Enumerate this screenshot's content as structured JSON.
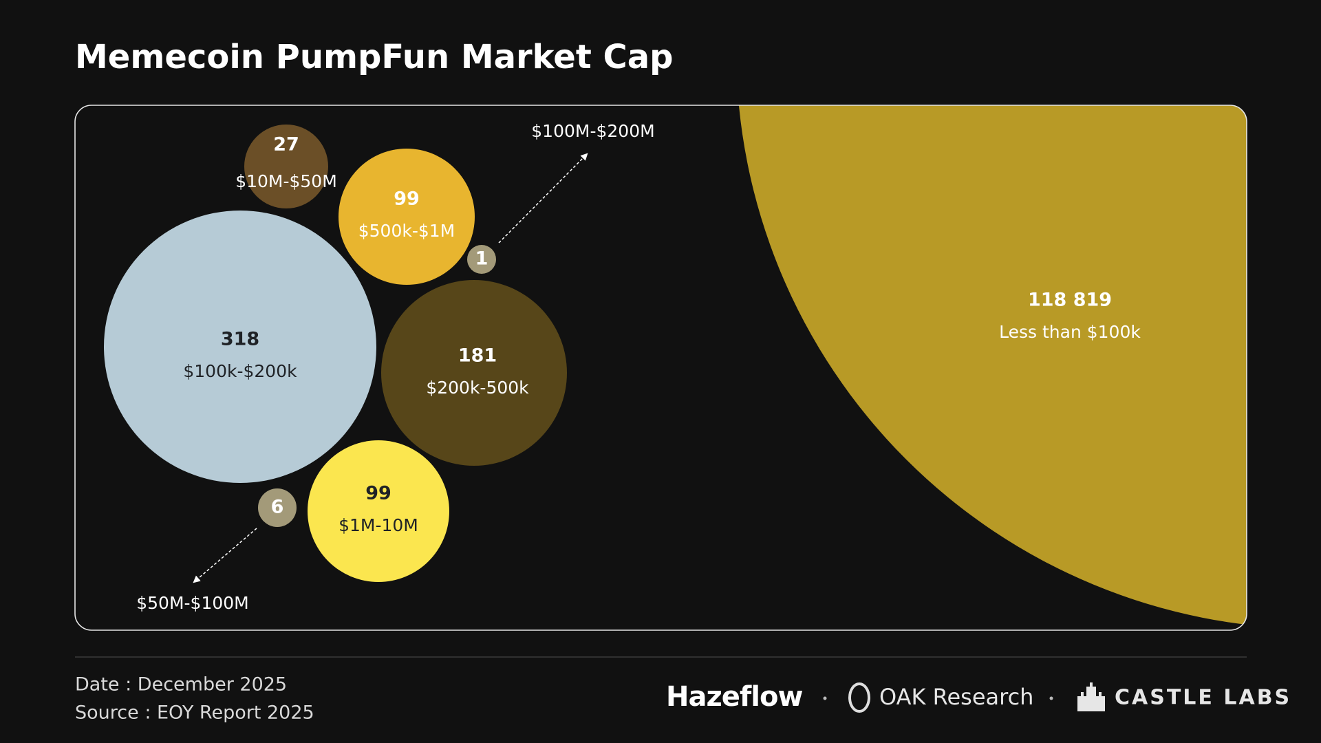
{
  "chart_data": {
    "type": "bubble",
    "title": "Memecoin PumpFun Market Cap",
    "categories": [
      "$10M-$50M",
      "$500k-$1M",
      "$100M-$200M",
      "$100k-$200k",
      "$200k-500k",
      "$1M-10M",
      "$50M-$100M",
      "Less than $100k"
    ],
    "values": [
      27,
      99,
      1,
      318,
      181,
      99,
      6,
      118819
    ],
    "value_labels": [
      "27",
      "99",
      "1",
      "318",
      "181",
      "99",
      "6",
      "118 819"
    ],
    "colors": [
      "#6b4f27",
      "#e8b52f",
      "#a39a79",
      "#b6cbd6",
      "#574619",
      "#fbe64f",
      "#a39a79",
      "#b89a26"
    ]
  },
  "footer": {
    "date": "Date : December 2025",
    "source": "Source : EOY Report 2025",
    "logos": [
      "Hazeflow",
      "OAK Research",
      "CASTLE LABS"
    ]
  }
}
